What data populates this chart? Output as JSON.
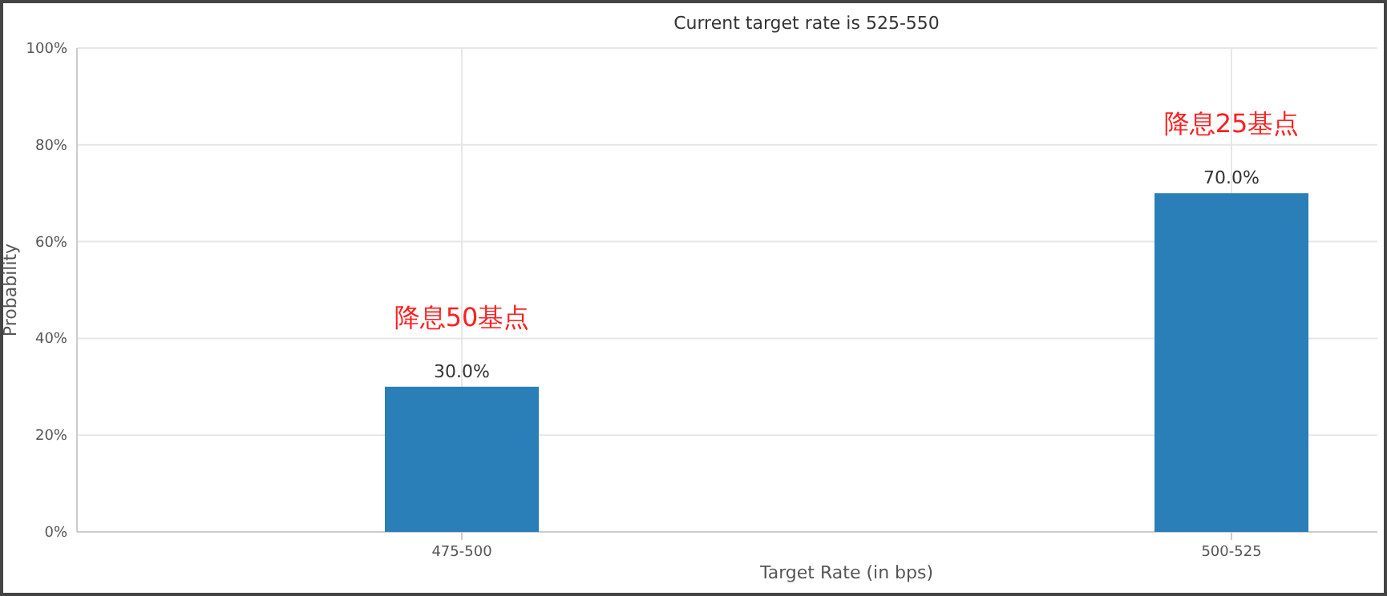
{
  "chart_data": {
    "type": "bar",
    "title": "Current target rate is 525-550",
    "xlabel": "Target Rate (in bps)",
    "ylabel": "Probability",
    "categories": [
      "475-500",
      "500-525"
    ],
    "values": [
      30,
      70
    ],
    "value_labels": [
      "30.0%",
      "70.0%"
    ],
    "color": "#2a7fb8",
    "ylim": [
      0,
      100
    ],
    "yticks": [
      {
        "value": 0,
        "label": "0%"
      },
      {
        "value": 20,
        "label": "20%"
      },
      {
        "value": 40,
        "label": "40%"
      },
      {
        "value": 60,
        "label": "60%"
      },
      {
        "value": 80,
        "label": "80%"
      },
      {
        "value": 100,
        "label": "100%"
      }
    ],
    "grid": true,
    "annotations": [
      "降息50基点",
      "降息25基点"
    ]
  }
}
